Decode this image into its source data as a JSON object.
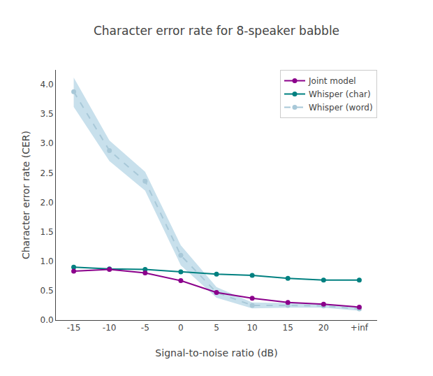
{
  "chart_data": {
    "type": "line",
    "title": "Character error rate for 8-speaker babble",
    "x_label": "Signal-to-noise ratio (dB)",
    "y_label": "Character error rate (CER)",
    "x": [
      -15,
      -10,
      -5,
      0,
      5,
      10,
      15,
      20,
      25
    ],
    "series": [
      {
        "name": "Whisper (word)",
        "color": "#A8C8D8",
        "marker": "circle",
        "line_style": "dashed",
        "values": [
          3.88,
          2.88,
          2.36,
          1.1,
          0.47,
          0.25,
          0.25,
          0.24,
          0.19
        ],
        "band": {
          "lower": [
            3.62,
            2.7,
            2.2,
            0.93,
            0.38,
            0.2,
            0.21,
            0.21,
            0.16
          ],
          "upper": [
            4.12,
            3.05,
            2.52,
            1.27,
            0.56,
            0.3,
            0.29,
            0.27,
            0.22
          ],
          "color": "#C8E0EC"
        }
      },
      {
        "name": "Whisper (char)",
        "color": "#008080",
        "marker": "circle",
        "line_style": "solid",
        "values": [
          0.9,
          0.87,
          0.86,
          0.82,
          0.78,
          0.76,
          0.71,
          0.68,
          0.68
        ]
      },
      {
        "name": "Joint model",
        "color": "#8B008B",
        "marker": "circle",
        "line_style": "solid",
        "values": [
          0.83,
          0.86,
          0.8,
          0.67,
          0.47,
          0.37,
          0.3,
          0.27,
          0.22
        ]
      }
    ],
    "xlim": [
      -17.5,
      27.5
    ],
    "xticks": [
      -15,
      -10,
      -5,
      0,
      5,
      10,
      15,
      20,
      {
        "value": 25,
        "label": "+inf"
      }
    ],
    "ylim": [
      0,
      4.25
    ],
    "yticks": [
      {
        "value": 0,
        "label": "0.0"
      },
      0.5,
      {
        "value": 1,
        "label": "1.0"
      },
      1.5,
      {
        "value": 2,
        "label": "2.0"
      },
      2.5,
      {
        "value": 3,
        "label": "3.0"
      },
      3.5,
      {
        "value": 4,
        "label": "4.0"
      }
    ],
    "grid": false,
    "legend": "upper right"
  }
}
